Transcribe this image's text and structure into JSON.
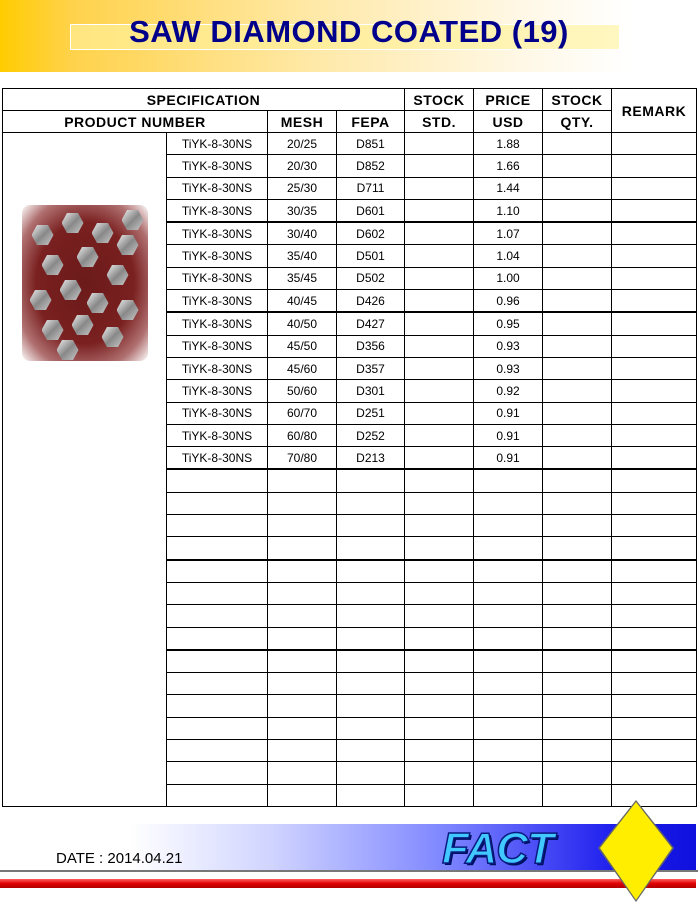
{
  "title": "SAW DIAMOND COATED (19)",
  "headers": {
    "specification": "SPECIFICATION",
    "product_number": "PRODUCT NUMBER",
    "mesh": "MESH",
    "fepa": "FEPA",
    "stock_std_1": "STOCK",
    "stock_std_2": "STD.",
    "price_1": "PRICE",
    "price_2": "USD",
    "stock_qty_1": "STOCK",
    "stock_qty_2": "QTY.",
    "remark": "REMARK"
  },
  "rows": [
    {
      "product": "TiYK-8-30NS",
      "mesh": "20/25",
      "fepa": "D851",
      "price": "1.88"
    },
    {
      "product": "TiYK-8-30NS",
      "mesh": "20/30",
      "fepa": "D852",
      "price": "1.66"
    },
    {
      "product": "TiYK-8-30NS",
      "mesh": "25/30",
      "fepa": "D711",
      "price": "1.44"
    },
    {
      "product": "TiYK-8-30NS",
      "mesh": "30/35",
      "fepa": "D601",
      "price": "1.10"
    },
    {
      "product": "TiYK-8-30NS",
      "mesh": "30/40",
      "fepa": "D602",
      "price": "1.07"
    },
    {
      "product": "TiYK-8-30NS",
      "mesh": "35/40",
      "fepa": "D501",
      "price": "1.04"
    },
    {
      "product": "TiYK-8-30NS",
      "mesh": "35/45",
      "fepa": "D502",
      "price": "1.00"
    },
    {
      "product": "TiYK-8-30NS",
      "mesh": "40/45",
      "fepa": "D426",
      "price": "0.96"
    },
    {
      "product": "TiYK-8-30NS",
      "mesh": "40/50",
      "fepa": "D427",
      "price": "0.95"
    },
    {
      "product": "TiYK-8-30NS",
      "mesh": "45/50",
      "fepa": "D356",
      "price": "0.93"
    },
    {
      "product": "TiYK-8-30NS",
      "mesh": "45/60",
      "fepa": "D357",
      "price": "0.93"
    },
    {
      "product": "TiYK-8-30NS",
      "mesh": "50/60",
      "fepa": "D301",
      "price": "0.92"
    },
    {
      "product": "TiYK-8-30NS",
      "mesh": "60/70",
      "fepa": "D251",
      "price": "0.91"
    },
    {
      "product": "TiYK-8-30NS",
      "mesh": "60/80",
      "fepa": "D252",
      "price": "0.91"
    },
    {
      "product": "TiYK-8-30NS",
      "mesh": "70/80",
      "fepa": "D213",
      "price": "0.91"
    }
  ],
  "empty_row_count": 15,
  "footer": {
    "date": "DATE : 2014.04.21",
    "logo_text": "FACT"
  },
  "colors": {
    "title": "#00008b",
    "banner": "#ffcc00",
    "footer_blue": "#1010dd",
    "footer_red": "#e00000",
    "logo_diamond": "#ffee00"
  }
}
